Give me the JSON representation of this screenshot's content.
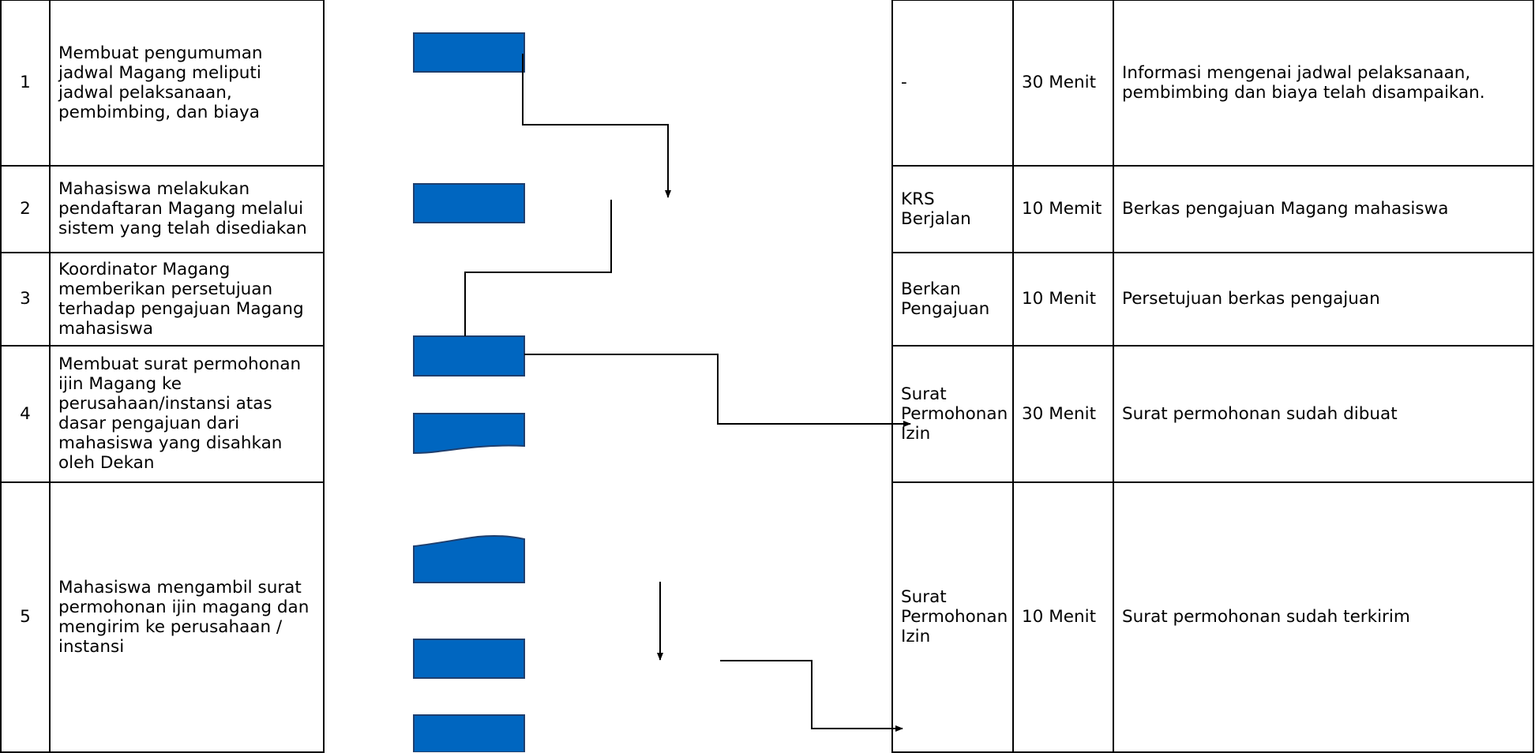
{
  "rows": [
    {
      "no": "1",
      "activity": "Membuat pengumuman jadwal Magang meliputi jadwal pelaksanaan, pembimbing, dan biaya",
      "input": "-",
      "time": "30 Menit",
      "output": "Informasi mengenai jadwal pelaksanaan, pembimbing dan biaya telah disampaikan."
    },
    {
      "no": "2",
      "activity": "Mahasiswa melakukan pendaftaran Magang melalui sistem yang telah disediakan",
      "input": "KRS Berjalan",
      "time": "10 Memit",
      "output": "Berkas pengajuan Magang mahasiswa"
    },
    {
      "no": "3",
      "activity": "Koordinator Magang memberikan persetujuan terhadap pengajuan Magang mahasiswa",
      "input": "Berkan Pengajuan",
      "time": "10 Menit",
      "output": "Persetujuan berkas pengajuan"
    },
    {
      "no": "4",
      "activity": "Membuat surat permohonan ijin Magang ke perusahaan/instansi  atas dasar pengajuan dari mahasiswa yang disahkan oleh Dekan",
      "input": "Surat Permohonan Izin",
      "time": "30 Menit",
      "output": "Surat permohonan sudah dibuat"
    },
    {
      "no": "5",
      "activity": "Mahasiswa mengambil surat permohonan ijin magang dan mengirim ke perusahaan / instansi",
      "input": "Surat Permohonan Izin",
      "time": "10 Menit",
      "output": "Surat permohonan sudah terkirim"
    }
  ],
  "colors": {
    "shape_fill": "#0066c0",
    "shape_stroke": "#1f3f6e",
    "line": "#000000"
  },
  "flow_shapes": [
    "process-box",
    "process-box",
    "process-box",
    "document-shape",
    "document-shape",
    "process-box",
    "process-box"
  ]
}
